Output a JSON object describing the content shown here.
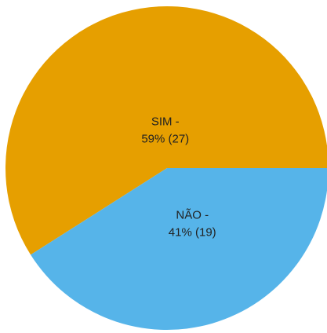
{
  "chart_data": {
    "type": "pie",
    "categories": [
      "SIM -",
      "NÃO -"
    ],
    "values": [
      59,
      41
    ],
    "value_labels": [
      "59% (27)",
      "41% (19)"
    ],
    "colors": [
      "#e69f00",
      "#56b4e9"
    ]
  }
}
